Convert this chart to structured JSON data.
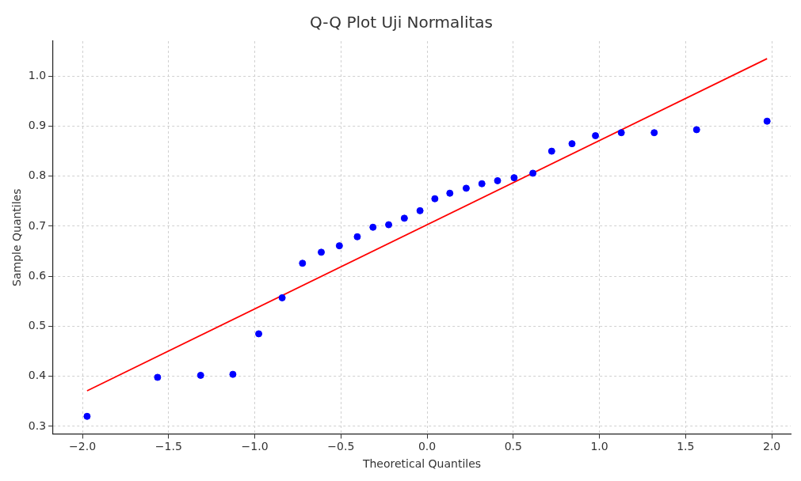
{
  "chart_data": {
    "type": "scatter",
    "title": "Q-Q Plot Uji Normalitas",
    "xlabel": "Theoretical Quantiles",
    "ylabel": "Sample Quantiles",
    "xlim": [
      -2.17,
      2.11
    ],
    "ylim": [
      0.285,
      1.07
    ],
    "xticks": [
      {
        "value": -2,
        "label": "−2.0"
      },
      {
        "value": -1.5,
        "label": "−1.5"
      },
      {
        "value": -1,
        "label": "−1.0"
      },
      {
        "value": -0.5,
        "label": "−0.5"
      },
      {
        "value": 0,
        "label": "0.0"
      },
      {
        "value": 0.5,
        "label": "0.5"
      },
      {
        "value": 1,
        "label": "1.0"
      },
      {
        "value": 1.5,
        "label": "1.5"
      },
      {
        "value": 2,
        "label": "2.0"
      }
    ],
    "yticks": [
      {
        "value": 0.3,
        "label": "0.3"
      },
      {
        "value": 0.4,
        "label": "0.4"
      },
      {
        "value": 0.5,
        "label": "0.5"
      },
      {
        "value": 0.6,
        "label": "0.6"
      },
      {
        "value": 0.7,
        "label": "0.7"
      },
      {
        "value": 0.8,
        "label": "0.8"
      },
      {
        "value": 0.9,
        "label": "0.9"
      },
      {
        "value": 1,
        "label": "1.0"
      }
    ],
    "grid": true,
    "series": [
      {
        "type": "scatter",
        "marker": "circle",
        "color": "#0000ff",
        "x": [
          -1.973,
          -1.564,
          -1.314,
          -1.127,
          -0.977,
          -0.841,
          -0.723,
          -0.614,
          -0.509,
          -0.405,
          -0.314,
          -0.223,
          -0.132,
          -0.041,
          0.045,
          0.132,
          0.227,
          0.318,
          0.409,
          0.505,
          0.614,
          0.723,
          0.841,
          0.977,
          1.127,
          1.318,
          1.564,
          1.973
        ],
        "values": [
          0.32,
          0.398,
          0.402,
          0.404,
          0.485,
          0.557,
          0.626,
          0.648,
          0.661,
          0.679,
          0.698,
          0.703,
          0.716,
          0.731,
          0.755,
          0.766,
          0.776,
          0.785,
          0.791,
          0.797,
          0.806,
          0.85,
          0.865,
          0.881,
          0.887,
          0.887,
          0.893,
          0.91
        ]
      },
      {
        "type": "line",
        "marker": "none",
        "color": "#ff0000",
        "x": [
          -1.973,
          1.973
        ],
        "values": [
          0.371,
          1.035
        ]
      }
    ]
  }
}
